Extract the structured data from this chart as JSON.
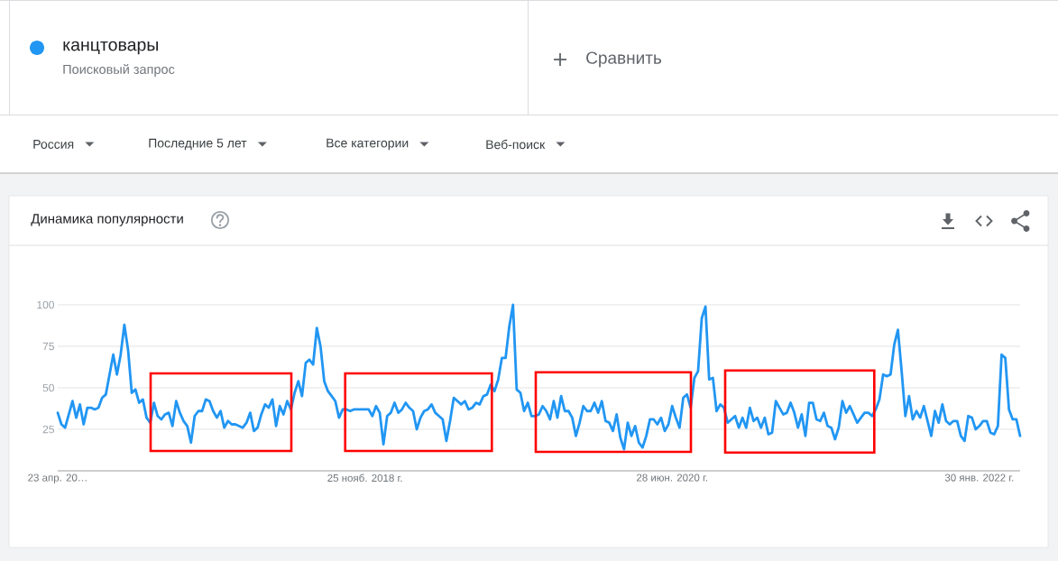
{
  "chart_data": {
    "type": "line",
    "title": "Динамика популярности",
    "x": [
      "2017-04-23",
      "2017-04-30",
      "2017-05-07",
      "2017-05-21",
      "2017-05-28",
      "2017-06-04",
      "2017-06-11",
      "2017-06-18",
      "2017-06-25",
      "2017-07-02",
      "2017-07-09",
      "2017-07-16",
      "2017-07-23",
      "2017-08-06",
      "2017-08-13",
      "2017-08-20",
      "2017-08-27",
      "2017-09-03",
      "2017-09-10",
      "2017-09-17",
      "2017-09-24",
      "2017-10-01",
      "2017-10-08",
      "2017-10-15",
      "2017-10-22",
      "2017-10-29",
      "2017-11-05",
      "2017-11-12",
      "2017-11-19",
      "2017-11-26",
      "2017-12-03",
      "2017-12-10",
      "2017-12-17",
      "2017-12-24",
      "2017-12-31",
      "2018-01-07",
      "2018-01-14",
      "2018-01-21",
      "2018-01-28",
      "2018-02-04",
      "2018-02-11",
      "2018-02-18",
      "2018-02-25",
      "2018-03-04",
      "2018-03-11",
      "2018-03-18",
      "2018-03-25",
      "2018-04-08",
      "2018-04-15",
      "2018-04-22",
      "2018-04-29",
      "2018-05-06",
      "2018-05-13",
      "2018-05-20",
      "2018-05-27",
      "2018-06-03",
      "2018-06-10",
      "2018-06-17",
      "2018-06-24",
      "2018-07-01",
      "2018-07-08",
      "2018-07-15",
      "2018-07-22",
      "2018-07-29",
      "2018-08-05",
      "2018-08-12",
      "2018-08-19",
      "2018-08-26",
      "2018-09-02",
      "2018-09-09",
      "2018-09-16",
      "2018-09-23",
      "2018-09-30",
      "2018-10-07",
      "2018-10-14",
      "2018-10-21",
      "2018-10-28",
      "2018-11-04",
      "2018-12-02",
      "2018-12-09",
      "2018-12-16",
      "2018-12-23",
      "2018-12-30",
      "2019-01-06",
      "2019-01-13",
      "2019-01-20",
      "2019-01-27",
      "2019-02-03",
      "2019-02-10",
      "2019-02-17",
      "2019-02-24",
      "2019-03-03",
      "2019-03-10",
      "2019-03-17",
      "2019-03-24",
      "2019-03-31",
      "2019-04-07",
      "2019-04-14",
      "2019-04-21",
      "2019-04-28",
      "2019-05-05",
      "2019-05-12",
      "2019-05-19",
      "2019-05-26",
      "2019-06-02",
      "2019-06-09",
      "2019-06-16",
      "2019-06-23",
      "2019-06-30",
      "2019-07-07",
      "2019-07-14",
      "2019-07-21",
      "2019-07-28",
      "2019-08-04",
      "2019-08-11",
      "2019-08-18",
      "2019-08-25",
      "2019-09-01",
      "2019-09-08",
      "2019-09-15",
      "2019-09-22",
      "2019-09-29",
      "2019-10-06",
      "2019-10-13",
      "2019-10-20",
      "2019-10-27",
      "2019-11-03",
      "2019-11-10",
      "2019-11-17",
      "2019-11-24",
      "2019-12-01",
      "2019-12-08",
      "2019-12-15",
      "2019-12-22",
      "2019-12-29",
      "2020-01-05",
      "2020-01-12",
      "2020-01-19",
      "2020-01-26",
      "2020-02-02",
      "2020-02-09",
      "2020-02-16",
      "2020-02-23",
      "2020-03-01",
      "2020-03-08",
      "2020-03-15",
      "2020-03-22",
      "2020-03-29",
      "2020-04-05",
      "2020-04-12",
      "2020-04-19",
      "2020-04-26",
      "2020-05-03",
      "2020-05-10",
      "2020-05-17",
      "2020-05-24",
      "2020-05-31",
      "2020-06-07",
      "2020-06-14",
      "2020-06-21",
      "2020-06-28",
      "2020-07-05",
      "2020-07-12",
      "2020-07-19",
      "2020-07-26",
      "2020-08-02",
      "2020-08-09",
      "2020-08-16",
      "2020-08-23",
      "2020-08-30",
      "2020-09-06",
      "2020-09-13",
      "2020-09-20",
      "2020-09-27",
      "2020-10-04",
      "2020-10-11",
      "2020-10-18",
      "2020-10-25",
      "2020-11-01",
      "2020-11-08",
      "2020-11-15",
      "2020-11-22",
      "2020-11-29",
      "2020-12-06",
      "2020-12-13",
      "2020-12-20",
      "2020-12-27",
      "2021-01-03",
      "2021-01-10",
      "2021-01-17",
      "2021-01-24",
      "2021-01-31",
      "2021-02-07",
      "2021-02-14",
      "2021-02-21",
      "2021-02-28",
      "2021-03-07",
      "2021-03-14",
      "2021-03-21",
      "2021-03-28",
      "2021-04-04",
      "2021-04-11",
      "2021-04-18",
      "2021-04-25",
      "2021-05-02",
      "2021-05-09",
      "2021-05-16",
      "2021-05-23",
      "2021-05-30",
      "2021-06-06",
      "2021-06-13",
      "2021-06-20",
      "2021-06-27",
      "2021-07-04",
      "2021-07-11",
      "2021-07-18",
      "2021-07-25",
      "2021-08-01",
      "2021-08-08",
      "2021-08-15",
      "2021-08-22",
      "2021-08-29",
      "2021-09-05",
      "2021-09-12",
      "2021-09-19",
      "2021-09-26",
      "2021-10-03",
      "2021-10-10",
      "2021-10-17",
      "2021-10-24",
      "2021-10-31",
      "2021-11-07",
      "2021-11-14",
      "2021-11-21",
      "2021-11-28",
      "2021-12-05",
      "2021-12-12",
      "2021-12-19",
      "2021-12-26",
      "2022-01-02",
      "2022-01-09",
      "2022-01-16",
      "2022-01-23",
      "2022-01-30",
      "2022-02-06",
      "2022-02-13",
      "2022-02-20",
      "2022-02-27",
      "2022-03-06",
      "2022-03-13",
      "2022-03-20",
      "2022-03-27",
      "2022-04-03",
      "2022-04-10",
      "2022-04-17"
    ],
    "series": [
      {
        "name": "канцтовары",
        "color": "#2196f3",
        "values": [
          35,
          28,
          26,
          42,
          32,
          40,
          28,
          38,
          38,
          37,
          38,
          44,
          46,
          70,
          58,
          70,
          88,
          73,
          47,
          49,
          41,
          43,
          32,
          29,
          41,
          33,
          31,
          34,
          35,
          27,
          42,
          35,
          30,
          27,
          17,
          33,
          36,
          36,
          43,
          42,
          36,
          32,
          36,
          26,
          30,
          28,
          28,
          26,
          29,
          35,
          24,
          26,
          34,
          40,
          38,
          43,
          27,
          39,
          34,
          42,
          37,
          47,
          54,
          45,
          65,
          67,
          64,
          86,
          75,
          54,
          48,
          45,
          42,
          32,
          37,
          37,
          36,
          37,
          37,
          33,
          39,
          35,
          16,
          33,
          35,
          41,
          35,
          37,
          41,
          38,
          36,
          25,
          32,
          36,
          37,
          40,
          35,
          33,
          31,
          18,
          30,
          44,
          42,
          40,
          42,
          37,
          38,
          41,
          40,
          45,
          46,
          52,
          48,
          55,
          68,
          68,
          87,
          100,
          49,
          47,
          36,
          41,
          33,
          33,
          34,
          39,
          36,
          31,
          42,
          32,
          45,
          36,
          36,
          32,
          21,
          29,
          39,
          36,
          36,
          41,
          35,
          42,
          30,
          29,
          24,
          34,
          20,
          13,
          29,
          21,
          27,
          17,
          14,
          21,
          31,
          31,
          28,
          32,
          24,
          28,
          39,
          32,
          26,
          44,
          46,
          38,
          56,
          60,
          92,
          99,
          55,
          56,
          36,
          40,
          38,
          29,
          31,
          33,
          26,
          32,
          26,
          38,
          30,
          32,
          26,
          32,
          22,
          23,
          42,
          38,
          34,
          35,
          41,
          35,
          26,
          34,
          21,
          41,
          41,
          31,
          30,
          35,
          27,
          26,
          19,
          26,
          42,
          35,
          39,
          34,
          29,
          32,
          35,
          35,
          33,
          37,
          43,
          58,
          57,
          58,
          76,
          85,
          60,
          33,
          45,
          31,
          36,
          32,
          39,
          30,
          21,
          36,
          29,
          40,
          30,
          28,
          30,
          30,
          21,
          18,
          33,
          32,
          25,
          27,
          30,
          30,
          23,
          22,
          27,
          70,
          68,
          37,
          31,
          31,
          21
        ]
      }
    ],
    "xlim": [
      "2017-04-23",
      "2022-04-17"
    ],
    "ylim": [
      0,
      100
    ],
    "xticks": [
      {
        "value": "2017-04-23",
        "label": "23 апр. 20…"
      },
      {
        "value": "2018-11-25",
        "label": "25 нояб. 2018 г."
      },
      {
        "value": "2020-06-28",
        "label": "28 июн. 2020 г."
      },
      {
        "value": "2022-01-30",
        "label": "30 янв. 2022 г."
      }
    ],
    "yticks": [
      25,
      50,
      75,
      100
    ],
    "grid": "y",
    "legend": "top left",
    "annotations": [
      "Поисковый запрос",
      "Сравнить",
      "Россия",
      "Последние 5 лет",
      "Все категории",
      "Веб-поиск"
    ]
  }
}
